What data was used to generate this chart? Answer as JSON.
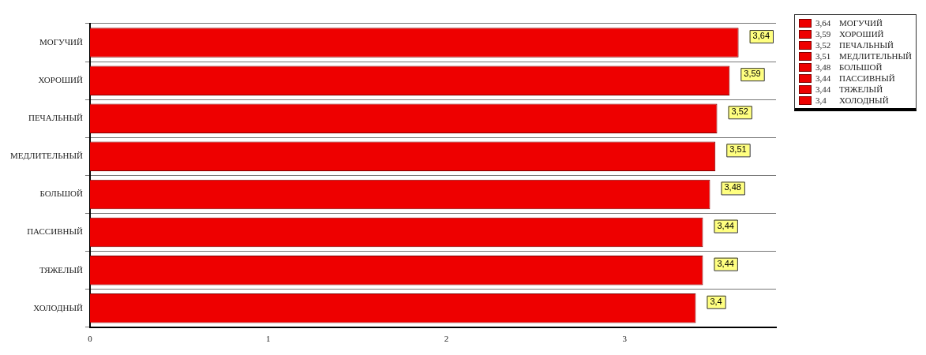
{
  "chart_data": {
    "type": "bar",
    "orientation": "horizontal",
    "categories": [
      "МОГУЧИЙ",
      "ХОРОШИЙ",
      "ПЕЧАЛЬНЫЙ",
      "МЕДЛИТЕЛЬНЫЙ",
      "БОЛЬШОЙ",
      "ПАССИВНЫЙ",
      "ТЯЖЕЛЫЙ",
      "ХОЛОДНЫЙ"
    ],
    "series": [
      {
        "name": "МОГУЧИЙ",
        "color": "#ee0000",
        "values": [
          3.64,
          null,
          null,
          null,
          null,
          null,
          null,
          null
        ],
        "value_labels": [
          "3,64",
          null,
          null,
          null,
          null,
          null,
          null,
          null
        ]
      },
      {
        "name": "ХОРОШИЙ",
        "color": "#ee0000",
        "values": [
          null,
          3.59,
          null,
          null,
          null,
          null,
          null,
          null
        ],
        "value_labels": [
          null,
          "3,59",
          null,
          null,
          null,
          null,
          null,
          null
        ]
      },
      {
        "name": "ПЕЧАЛЬНЫЙ",
        "color": "#ee0000",
        "values": [
          null,
          null,
          3.52,
          null,
          null,
          null,
          null,
          null
        ],
        "value_labels": [
          null,
          null,
          "3,52",
          null,
          null,
          null,
          null,
          null
        ]
      },
      {
        "name": "МЕДЛИТЕЛЬНЫЙ",
        "color": "#ee0000",
        "values": [
          null,
          null,
          null,
          3.51,
          null,
          null,
          null,
          null
        ],
        "value_labels": [
          null,
          null,
          null,
          "3,51",
          null,
          null,
          null,
          null
        ]
      },
      {
        "name": "БОЛЬШОЙ",
        "color": "#ee0000",
        "values": [
          null,
          null,
          null,
          null,
          3.48,
          null,
          null,
          null
        ],
        "value_labels": [
          null,
          null,
          null,
          null,
          "3,48",
          null,
          null,
          null
        ]
      },
      {
        "name": "ПАССИВНЫЙ",
        "color": "#ee0000",
        "values": [
          null,
          null,
          null,
          null,
          null,
          3.44,
          null,
          null
        ],
        "value_labels": [
          null,
          null,
          null,
          null,
          null,
          "3,44",
          null,
          null
        ]
      },
      {
        "name": "ТЯЖЕЛЫЙ",
        "color": "#ee0000",
        "values": [
          null,
          null,
          null,
          null,
          null,
          null,
          3.44,
          null
        ],
        "value_labels": [
          null,
          null,
          null,
          null,
          null,
          null,
          "3,44",
          null
        ]
      },
      {
        "name": "ХОЛОДНЫЙ",
        "color": "#ee0000",
        "values": [
          null,
          null,
          null,
          null,
          null,
          null,
          null,
          3.4
        ],
        "value_labels": [
          null,
          null,
          null,
          null,
          null,
          null,
          null,
          "3,4"
        ]
      }
    ],
    "xlim": [
      0,
      3.85
    ],
    "xticks": [
      0,
      1,
      2,
      3
    ],
    "grid": "y",
    "legend": "top right"
  }
}
